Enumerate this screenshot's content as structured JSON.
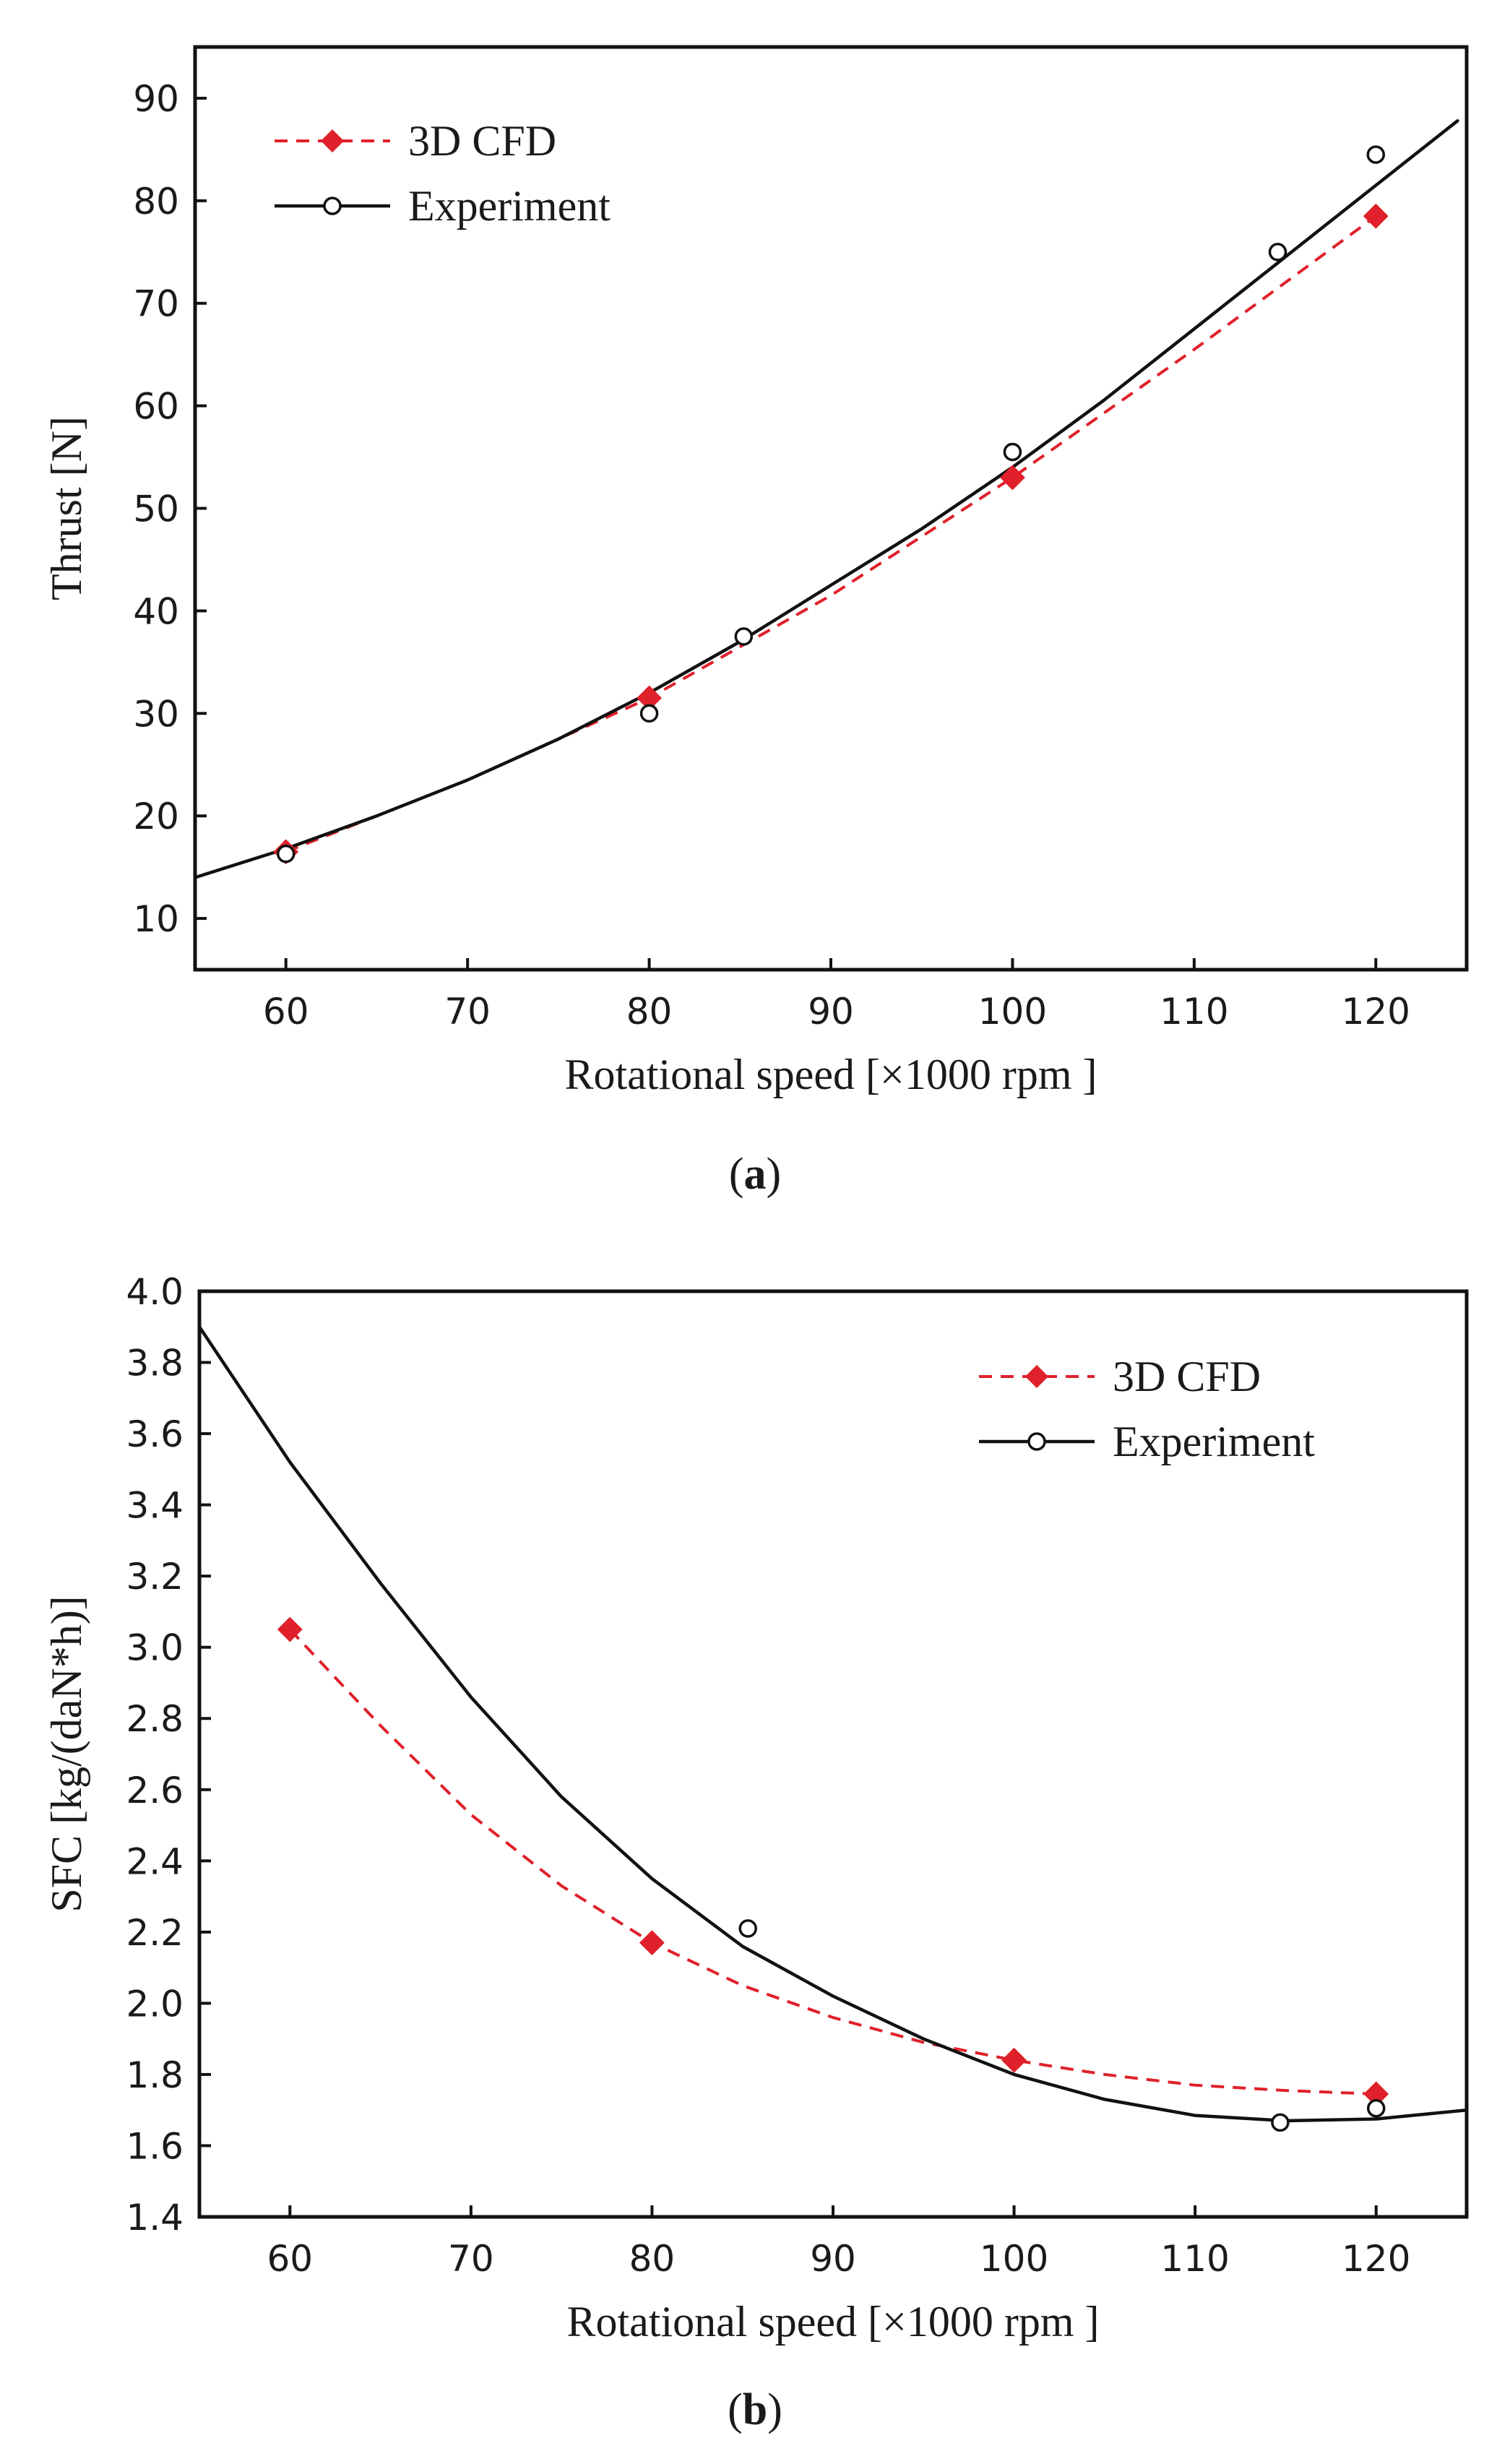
{
  "chart_data": [
    {
      "type": "line",
      "panel_label": "a",
      "xlabel": "Rotational speed [×1000 rpm ]",
      "ylabel": "Thrust [N]",
      "xlim": [
        55,
        125
      ],
      "ylim": [
        5,
        95
      ],
      "xticks": [
        60,
        70,
        80,
        90,
        100,
        110,
        120
      ],
      "yticks": [
        10,
        20,
        30,
        40,
        50,
        60,
        70,
        80,
        90
      ],
      "legend_position": "top-left",
      "series": [
        {
          "name": "3D CFD",
          "color": "#e0202a",
          "style": "dashed",
          "marker": "diamond",
          "markers": [
            {
              "x": 60,
              "y": 16.5
            },
            {
              "x": 80,
              "y": 31.5
            },
            {
              "x": 100,
              "y": 53
            },
            {
              "x": 120,
              "y": 78.5
            }
          ],
          "line": [
            {
              "x": 60,
              "y": 16.5
            },
            {
              "x": 70,
              "y": 23.5
            },
            {
              "x": 80,
              "y": 31.5
            },
            {
              "x": 90,
              "y": 41.5
            },
            {
              "x": 100,
              "y": 53
            },
            {
              "x": 110,
              "y": 65.5
            },
            {
              "x": 120,
              "y": 78.5
            }
          ]
        },
        {
          "name": "Experiment",
          "color": "#111111",
          "style": "solid",
          "marker": "circle",
          "markers": [
            {
              "x": 60,
              "y": 16.3
            },
            {
              "x": 80,
              "y": 30
            },
            {
              "x": 85.2,
              "y": 37.5
            },
            {
              "x": 100,
              "y": 55.5
            },
            {
              "x": 114.6,
              "y": 75
            },
            {
              "x": 120,
              "y": 84.5
            }
          ],
          "line": [
            {
              "x": 55,
              "y": 14
            },
            {
              "x": 60,
              "y": 16.8
            },
            {
              "x": 65,
              "y": 20
            },
            {
              "x": 70,
              "y": 23.5
            },
            {
              "x": 75,
              "y": 27.5
            },
            {
              "x": 80,
              "y": 32
            },
            {
              "x": 85,
              "y": 37
            },
            {
              "x": 90,
              "y": 42.5
            },
            {
              "x": 95,
              "y": 48
            },
            {
              "x": 100,
              "y": 54
            },
            {
              "x": 105,
              "y": 60.5
            },
            {
              "x": 110,
              "y": 67.5
            },
            {
              "x": 115,
              "y": 74.5
            },
            {
              "x": 120,
              "y": 81.5
            },
            {
              "x": 124.5,
              "y": 87.8
            }
          ]
        }
      ]
    },
    {
      "type": "line",
      "panel_label": "b",
      "xlabel": "Rotational speed [×1000 rpm ]",
      "ylabel": "SFC  [kg/(daN*h)]",
      "xlim": [
        55,
        125
      ],
      "ylim": [
        1.4,
        4.0
      ],
      "xticks": [
        60,
        70,
        80,
        90,
        100,
        110,
        120
      ],
      "yticks": [
        1.4,
        1.6,
        1.8,
        2.0,
        2.2,
        2.4,
        2.6,
        2.8,
        3.0,
        3.2,
        3.4,
        3.6,
        3.8,
        4.0
      ],
      "legend_position": "top-right",
      "series": [
        {
          "name": "3D CFD",
          "color": "#e0202a",
          "style": "dashed",
          "marker": "diamond",
          "markers": [
            {
              "x": 60,
              "y": 3.05
            },
            {
              "x": 80,
              "y": 2.17
            },
            {
              "x": 100,
              "y": 1.84
            },
            {
              "x": 120,
              "y": 1.745
            }
          ],
          "line": [
            {
              "x": 60,
              "y": 3.05
            },
            {
              "x": 65,
              "y": 2.78
            },
            {
              "x": 70,
              "y": 2.53
            },
            {
              "x": 75,
              "y": 2.33
            },
            {
              "x": 80,
              "y": 2.17
            },
            {
              "x": 85,
              "y": 2.05
            },
            {
              "x": 90,
              "y": 1.96
            },
            {
              "x": 95,
              "y": 1.89
            },
            {
              "x": 100,
              "y": 1.84
            },
            {
              "x": 105,
              "y": 1.8
            },
            {
              "x": 110,
              "y": 1.77
            },
            {
              "x": 115,
              "y": 1.755
            },
            {
              "x": 120,
              "y": 1.745
            }
          ]
        },
        {
          "name": "Experiment",
          "color": "#111111",
          "style": "solid",
          "marker": "circle",
          "markers": [
            {
              "x": 85.3,
              "y": 2.21
            },
            {
              "x": 114.7,
              "y": 1.665
            },
            {
              "x": 120,
              "y": 1.705
            }
          ],
          "line": [
            {
              "x": 55,
              "y": 3.9
            },
            {
              "x": 60,
              "y": 3.52
            },
            {
              "x": 65,
              "y": 3.18
            },
            {
              "x": 70,
              "y": 2.86
            },
            {
              "x": 75,
              "y": 2.58
            },
            {
              "x": 80,
              "y": 2.35
            },
            {
              "x": 85,
              "y": 2.16
            },
            {
              "x": 90,
              "y": 2.02
            },
            {
              "x": 95,
              "y": 1.9
            },
            {
              "x": 100,
              "y": 1.8
            },
            {
              "x": 105,
              "y": 1.73
            },
            {
              "x": 110,
              "y": 1.685
            },
            {
              "x": 115,
              "y": 1.67
            },
            {
              "x": 120,
              "y": 1.675
            },
            {
              "x": 125,
              "y": 1.7
            }
          ]
        }
      ]
    }
  ]
}
